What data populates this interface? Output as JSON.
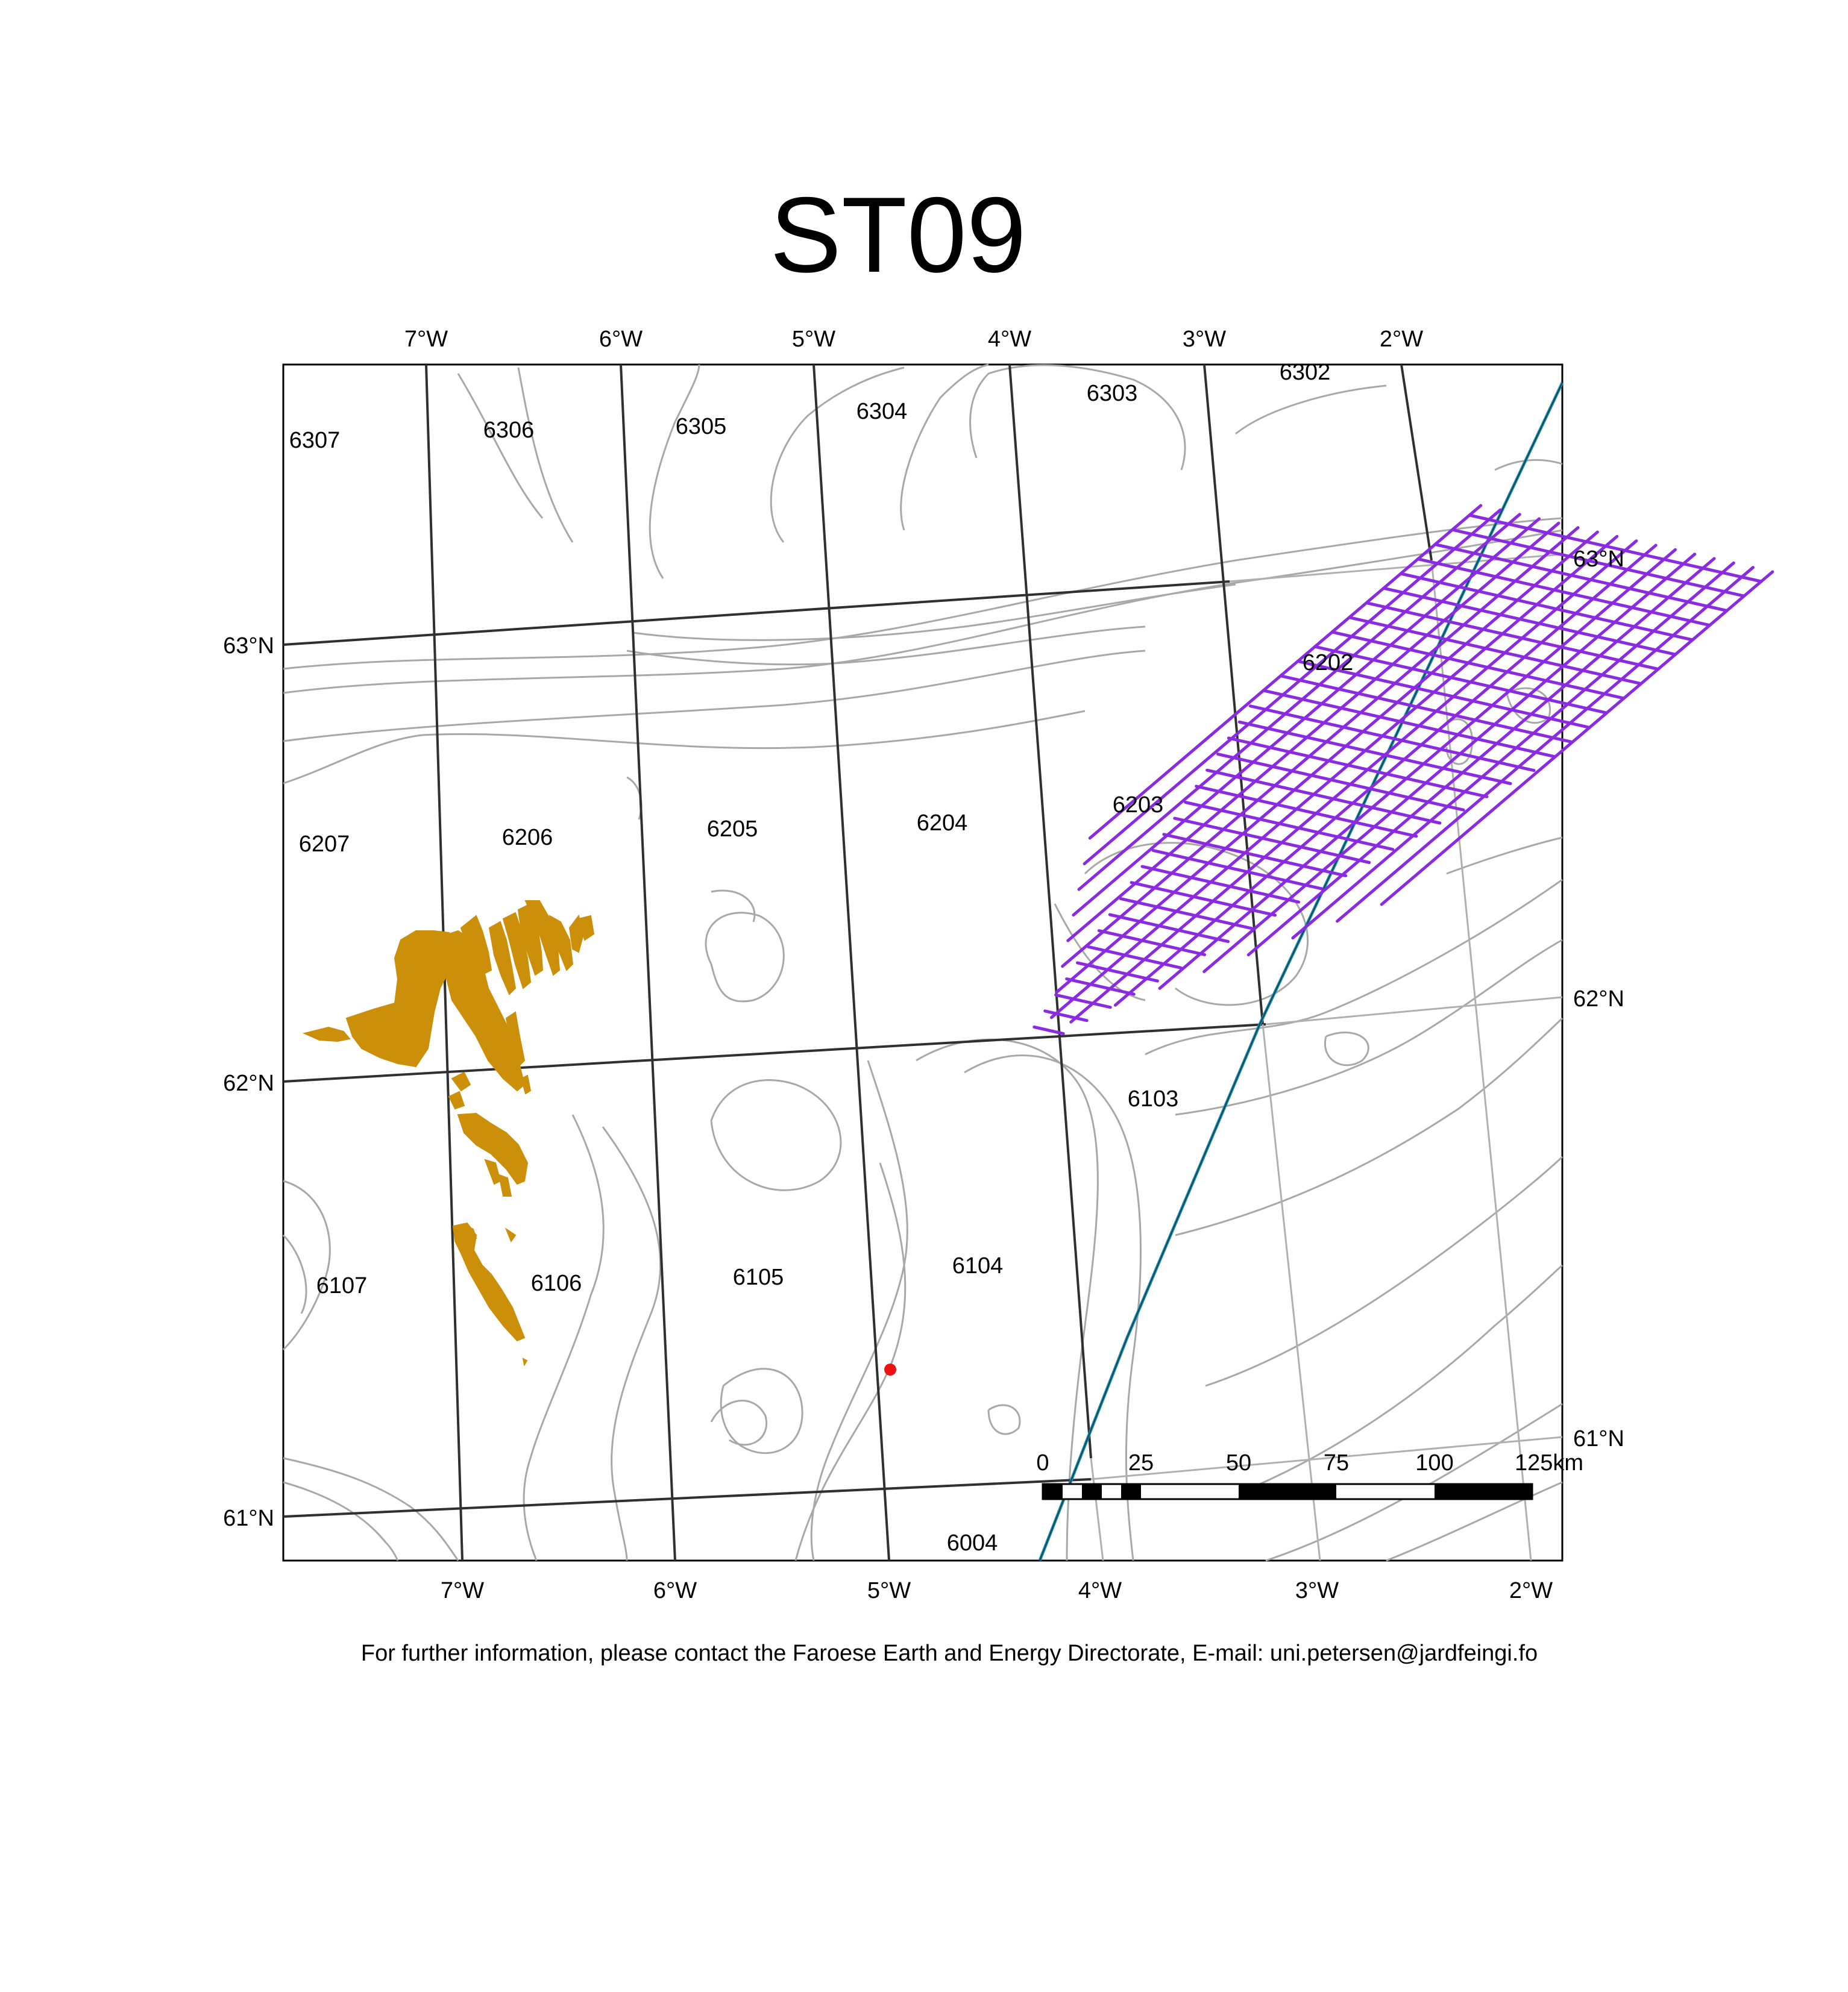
{
  "title": "ST09",
  "footer": "For further information, please contact the Faroese Earth and Energy Directorate, E-mail: uni.petersen@jardfeingi.fo",
  "colors": {
    "land": "#cc8f0a",
    "survey": "#8a2be2",
    "contour": "#a8a8a8",
    "grid": "#303030",
    "boundary": "#1a8aa8",
    "well": "#ee1111"
  },
  "axes": {
    "top": [
      "7°W",
      "6°W",
      "5°W",
      "4°W",
      "3°W",
      "2°W"
    ],
    "bottom": [
      "7°W",
      "6°W",
      "5°W",
      "4°W",
      "3°W",
      "2°W"
    ],
    "left": [
      "63°N",
      "62°N",
      "61°N"
    ],
    "right": [
      "63°N",
      "62°N",
      "61°N"
    ]
  },
  "quadrants": [
    "6307",
    "6306",
    "6305",
    "6304",
    "6303",
    "6302",
    "6207",
    "6206",
    "6205",
    "6204",
    "6203",
    "6202",
    "6103",
    "6107",
    "6106",
    "6105",
    "6104",
    "6004"
  ],
  "scalebar": {
    "labels": [
      "0",
      "25",
      "50",
      "75",
      "100",
      "125km"
    ]
  },
  "icons": {
    "well": "red-dot",
    "land": "faroe-islands"
  }
}
